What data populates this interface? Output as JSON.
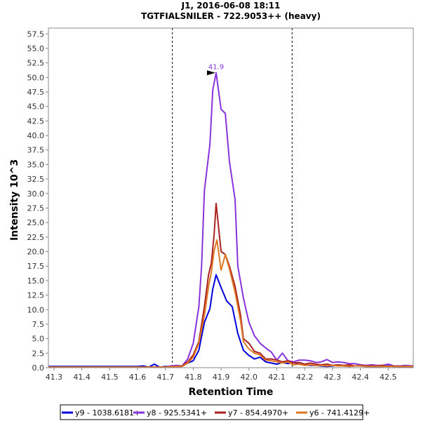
{
  "chart_data": {
    "type": "line",
    "title": "J1, 2016-06-08 18:11",
    "subtitle": "TGTFIALSNILER - 722.9053++ (heavy)",
    "xlabel": "Retention Time",
    "ylabel": "Intensity 10^3",
    "xlim": [
      41.28,
      42.59
    ],
    "ylim": [
      0,
      58.5
    ],
    "x_ticks": [
      "41.3",
      "41.4",
      "41.5",
      "41.6",
      "41.7",
      "41.8",
      "41.9",
      "42.0",
      "42.1",
      "42.2",
      "42.3",
      "42.4",
      "42.5"
    ],
    "y_ticks": [
      "0.0",
      "2.5",
      "5.0",
      "7.5",
      "10.0",
      "12.5",
      "15.0",
      "17.5",
      "20.0",
      "22.5",
      "25.0",
      "27.5",
      "30.0",
      "32.5",
      "35.0",
      "37.5",
      "40.0",
      "42.5",
      "45.0",
      "47.5",
      "50.0",
      "52.5",
      "55.0",
      "57.5"
    ],
    "grid": false,
    "vlines": [
      41.725,
      42.155
    ],
    "peak_annotation": {
      "label": "41.9",
      "x": 41.882,
      "y": 50.8
    },
    "legend_position": "bottom",
    "series": [
      {
        "name": "y9 - 1038.6181+",
        "color": "#0000dd",
        "points": [
          [
            41.28,
            0.2
          ],
          [
            41.3,
            0.2
          ],
          [
            41.35,
            0.2
          ],
          [
            41.4,
            0.2
          ],
          [
            41.45,
            0.2
          ],
          [
            41.5,
            0.2
          ],
          [
            41.55,
            0.2
          ],
          [
            41.6,
            0.2
          ],
          [
            41.62,
            0.3
          ],
          [
            41.64,
            0.1
          ],
          [
            41.66,
            0.6
          ],
          [
            41.68,
            0.1
          ],
          [
            41.7,
            0.2
          ],
          [
            41.72,
            0.2
          ],
          [
            41.74,
            0.2
          ],
          [
            41.76,
            0.2
          ],
          [
            41.78,
            0.8
          ],
          [
            41.8,
            1.2
          ],
          [
            41.82,
            3.0
          ],
          [
            41.84,
            7.8
          ],
          [
            41.86,
            10.2
          ],
          [
            41.87,
            13.5
          ],
          [
            41.882,
            16.0
          ],
          [
            41.9,
            13.8
          ],
          [
            41.92,
            11.5
          ],
          [
            41.94,
            10.5
          ],
          [
            41.96,
            5.9
          ],
          [
            41.98,
            3.0
          ],
          [
            42.0,
            2.1
          ],
          [
            42.02,
            1.5
          ],
          [
            42.04,
            1.8
          ],
          [
            42.06,
            1.0
          ],
          [
            42.08,
            0.8
          ],
          [
            42.1,
            0.6
          ],
          [
            42.12,
            0.9
          ],
          [
            42.14,
            0.7
          ],
          [
            42.16,
            0.9
          ],
          [
            42.18,
            0.6
          ],
          [
            42.2,
            0.5
          ],
          [
            42.22,
            0.4
          ],
          [
            42.24,
            0.4
          ],
          [
            42.26,
            0.3
          ],
          [
            42.28,
            0.2
          ],
          [
            42.3,
            0.3
          ],
          [
            42.32,
            0.4
          ],
          [
            42.34,
            0.3
          ],
          [
            42.36,
            0.2
          ],
          [
            42.38,
            0.3
          ],
          [
            42.4,
            0.3
          ],
          [
            42.42,
            0.2
          ],
          [
            42.44,
            0.2
          ],
          [
            42.46,
            0.2
          ],
          [
            42.48,
            0.2
          ],
          [
            42.5,
            0.3
          ],
          [
            42.52,
            0.2
          ],
          [
            42.54,
            0.2
          ],
          [
            42.56,
            0.2
          ],
          [
            42.59,
            0.2
          ]
        ]
      },
      {
        "name": "y8 - 925.5341+",
        "color": "#8833dd",
        "points": [
          [
            41.28,
            0.1
          ],
          [
            41.3,
            0.1
          ],
          [
            41.35,
            0.1
          ],
          [
            41.4,
            0.1
          ],
          [
            41.45,
            0.1
          ],
          [
            41.5,
            0.1
          ],
          [
            41.55,
            0.1
          ],
          [
            41.6,
            0.1
          ],
          [
            41.64,
            0.1
          ],
          [
            41.68,
            0.1
          ],
          [
            41.7,
            0.1
          ],
          [
            41.72,
            0.3
          ],
          [
            41.74,
            0.4
          ],
          [
            41.76,
            0.3
          ],
          [
            41.78,
            1.5
          ],
          [
            41.8,
            4.2
          ],
          [
            41.82,
            10.5
          ],
          [
            41.83,
            17.5
          ],
          [
            41.84,
            30.5
          ],
          [
            41.86,
            38.5
          ],
          [
            41.87,
            47.8
          ],
          [
            41.882,
            50.8
          ],
          [
            41.9,
            44.5
          ],
          [
            41.915,
            43.8
          ],
          [
            41.93,
            35.5
          ],
          [
            41.95,
            29.0
          ],
          [
            41.96,
            17.5
          ],
          [
            41.98,
            12.0
          ],
          [
            42.0,
            7.8
          ],
          [
            42.02,
            5.5
          ],
          [
            42.04,
            4.2
          ],
          [
            42.06,
            3.4
          ],
          [
            42.08,
            2.7
          ],
          [
            42.1,
            1.3
          ],
          [
            42.12,
            2.5
          ],
          [
            42.14,
            1.2
          ],
          [
            42.16,
            1.0
          ],
          [
            42.18,
            1.3
          ],
          [
            42.2,
            1.3
          ],
          [
            42.22,
            1.2
          ],
          [
            42.24,
            0.9
          ],
          [
            42.26,
            1.0
          ],
          [
            42.28,
            1.4
          ],
          [
            42.3,
            0.9
          ],
          [
            42.32,
            1.0
          ],
          [
            42.34,
            0.9
          ],
          [
            42.36,
            0.7
          ],
          [
            42.38,
            0.7
          ],
          [
            42.4,
            0.5
          ],
          [
            42.42,
            0.4
          ],
          [
            42.44,
            0.5
          ],
          [
            42.46,
            0.4
          ],
          [
            42.48,
            0.4
          ],
          [
            42.5,
            0.6
          ],
          [
            42.52,
            0.3
          ],
          [
            42.54,
            0.3
          ],
          [
            42.56,
            0.4
          ],
          [
            42.59,
            0.3
          ]
        ]
      },
      {
        "name": "y7 - 854.4970+",
        "color": "#aa2222",
        "points": [
          [
            41.28,
            0.1
          ],
          [
            41.35,
            0.1
          ],
          [
            41.45,
            0.1
          ],
          [
            41.55,
            0.1
          ],
          [
            41.65,
            0.1
          ],
          [
            41.7,
            0.1
          ],
          [
            41.74,
            0.2
          ],
          [
            41.76,
            0.3
          ],
          [
            41.78,
            1.0
          ],
          [
            41.8,
            2.2
          ],
          [
            41.82,
            4.5
          ],
          [
            41.84,
            10.5
          ],
          [
            41.855,
            16.0
          ],
          [
            41.865,
            18.0
          ],
          [
            41.875,
            23.0
          ],
          [
            41.882,
            28.3
          ],
          [
            41.9,
            20.0
          ],
          [
            41.915,
            19.5
          ],
          [
            41.93,
            17.5
          ],
          [
            41.95,
            14.0
          ],
          [
            41.97,
            9.0
          ],
          [
            41.98,
            5.0
          ],
          [
            42.0,
            4.2
          ],
          [
            42.02,
            2.8
          ],
          [
            42.04,
            2.5
          ],
          [
            42.06,
            1.5
          ],
          [
            42.08,
            1.5
          ],
          [
            42.1,
            1.3
          ],
          [
            42.12,
            1.0
          ],
          [
            42.14,
            1.2
          ],
          [
            42.16,
            0.8
          ],
          [
            42.18,
            0.9
          ],
          [
            42.2,
            0.6
          ],
          [
            42.22,
            0.8
          ],
          [
            42.24,
            0.6
          ],
          [
            42.26,
            0.5
          ],
          [
            42.28,
            0.6
          ],
          [
            42.3,
            0.4
          ],
          [
            42.32,
            0.5
          ],
          [
            42.34,
            0.4
          ],
          [
            42.36,
            0.5
          ],
          [
            42.38,
            0.3
          ],
          [
            42.4,
            0.4
          ],
          [
            42.42,
            0.3
          ],
          [
            42.44,
            0.3
          ],
          [
            42.46,
            0.3
          ],
          [
            42.48,
            0.4
          ],
          [
            42.5,
            0.2
          ],
          [
            42.52,
            0.3
          ],
          [
            42.54,
            0.2
          ],
          [
            42.56,
            0.2
          ],
          [
            42.59,
            0.2
          ]
        ]
      },
      {
        "name": "y6 - 741.4129+",
        "color": "#dd7722",
        "points": [
          [
            41.28,
            0.1
          ],
          [
            41.35,
            0.1
          ],
          [
            41.45,
            0.1
          ],
          [
            41.55,
            0.1
          ],
          [
            41.65,
            0.1
          ],
          [
            41.7,
            0.1
          ],
          [
            41.74,
            0.2
          ],
          [
            41.76,
            0.2
          ],
          [
            41.78,
            0.8
          ],
          [
            41.8,
            1.8
          ],
          [
            41.82,
            4.2
          ],
          [
            41.84,
            9.0
          ],
          [
            41.855,
            14.0
          ],
          [
            41.865,
            16.5
          ],
          [
            41.875,
            20.2
          ],
          [
            41.885,
            22.0
          ],
          [
            41.9,
            16.8
          ],
          [
            41.915,
            19.5
          ],
          [
            41.93,
            17.0
          ],
          [
            41.95,
            13.0
          ],
          [
            41.97,
            8.0
          ],
          [
            41.98,
            4.5
          ],
          [
            42.0,
            3.2
          ],
          [
            42.02,
            2.5
          ],
          [
            42.04,
            2.2
          ],
          [
            42.06,
            1.3
          ],
          [
            42.08,
            1.2
          ],
          [
            42.1,
            1.0
          ],
          [
            42.12,
            0.8
          ],
          [
            42.14,
            1.0
          ],
          [
            42.16,
            0.5
          ],
          [
            42.18,
            0.6
          ],
          [
            42.2,
            0.4
          ],
          [
            42.22,
            0.5
          ],
          [
            42.24,
            0.4
          ],
          [
            42.26,
            0.4
          ],
          [
            42.28,
            0.3
          ],
          [
            42.3,
            0.4
          ],
          [
            42.32,
            0.3
          ],
          [
            42.34,
            0.3
          ],
          [
            42.36,
            0.2
          ],
          [
            42.38,
            0.3
          ],
          [
            42.4,
            0.3
          ],
          [
            42.42,
            0.2
          ],
          [
            42.44,
            0.2
          ],
          [
            42.46,
            0.2
          ],
          [
            42.48,
            0.2
          ],
          [
            42.5,
            0.2
          ],
          [
            42.52,
            0.2
          ],
          [
            42.54,
            0.2
          ],
          [
            42.56,
            0.2
          ],
          [
            42.59,
            0.2
          ]
        ]
      }
    ]
  }
}
